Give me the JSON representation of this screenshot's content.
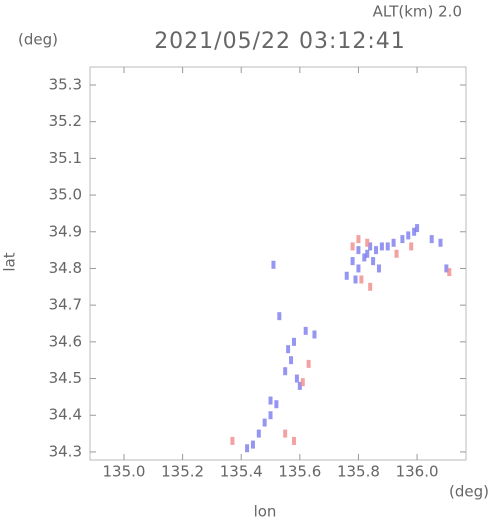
{
  "chart_data": {
    "type": "scatter",
    "title": "2021/05/22 03:12:41",
    "subtitle": "ALT(km) 2.0",
    "y_unit": "(deg)",
    "x_unit": "(deg)",
    "xlabel": "lon",
    "ylabel": "lat",
    "xlim": [
      134.884,
      136.167
    ],
    "ylim": [
      34.278,
      35.349
    ],
    "xticks": [
      {
        "value": 135,
        "label": "135.0"
      },
      135.2,
      135.4,
      135.6,
      135.8,
      {
        "value": 136,
        "label": "136.0"
      }
    ],
    "yticks": [
      34.3,
      34.4,
      34.5,
      34.6,
      34.7,
      34.8,
      34.9,
      {
        "value": 35,
        "label": "35.0"
      },
      35.1,
      35.2,
      35.3
    ],
    "series": [
      {
        "color": "#7b7bef",
        "x": [
          135.8,
          135.83,
          135.86,
          135.88,
          135.9,
          135.92,
          135.95,
          135.97,
          135.99,
          135.78,
          135.8,
          135.82,
          135.84,
          135.85,
          135.87,
          135.76,
          135.79,
          136.0,
          136.05,
          136.08,
          136.1,
          135.51,
          135.58,
          135.57,
          135.59,
          135.6,
          135.55,
          135.5,
          135.52,
          135.5,
          135.48,
          135.46,
          135.44,
          135.42,
          135.62,
          135.65,
          135.53,
          135.56
        ],
        "y": [
          34.85,
          34.84,
          34.85,
          34.86,
          34.86,
          34.87,
          34.88,
          34.89,
          34.9,
          34.82,
          34.8,
          34.83,
          34.86,
          34.82,
          34.8,
          34.78,
          34.77,
          34.91,
          34.88,
          34.87,
          34.8,
          34.81,
          34.6,
          34.55,
          34.5,
          34.48,
          34.52,
          34.44,
          34.43,
          34.4,
          34.38,
          34.35,
          34.32,
          34.31,
          34.63,
          34.62,
          34.67,
          34.58
        ]
      },
      {
        "color": "#f08a8a",
        "x": [
          135.8,
          135.83,
          135.78,
          135.81,
          135.84,
          135.93,
          135.98,
          136.11,
          135.37,
          135.58,
          135.61,
          135.63,
          135.55
        ],
        "y": [
          34.88,
          34.87,
          34.86,
          34.77,
          34.75,
          34.84,
          34.86,
          34.79,
          34.33,
          34.33,
          34.49,
          34.54,
          34.35
        ]
      }
    ]
  }
}
